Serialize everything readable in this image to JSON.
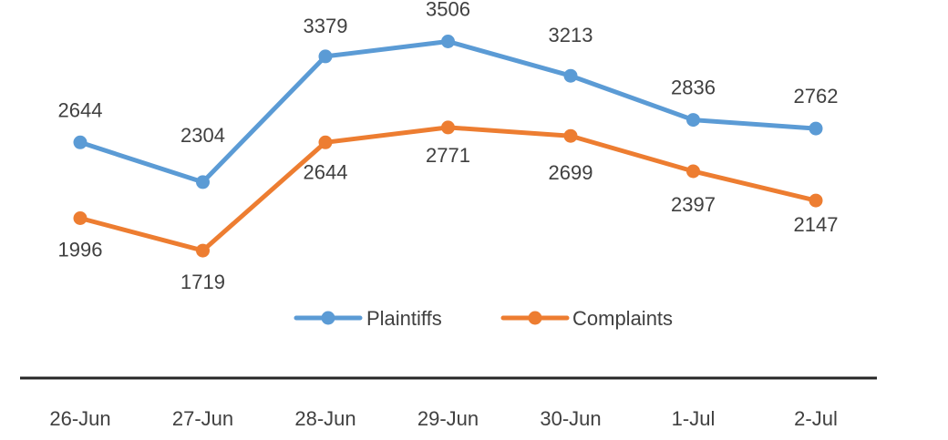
{
  "chart_data": {
    "type": "line",
    "title": "",
    "xlabel": "",
    "ylabel": "",
    "categories": [
      "26-Jun",
      "27-Jun",
      "28-Jun",
      "29-Jun",
      "30-Jun",
      "1-Jul",
      "2-Jul"
    ],
    "series": [
      {
        "name": "Plaintiffs",
        "color": "#5B9BD5",
        "values": [
          2644,
          2304,
          3379,
          3506,
          3213,
          2836,
          2762
        ]
      },
      {
        "name": "Complaints",
        "color": "#ED7D31",
        "values": [
          1996,
          1719,
          2644,
          2771,
          2699,
          2397,
          2147
        ]
      }
    ],
    "ylim": [
      1000,
      4000
    ],
    "grid": false,
    "data_labels": true,
    "legend_position": "bottom",
    "markers": "circle"
  }
}
